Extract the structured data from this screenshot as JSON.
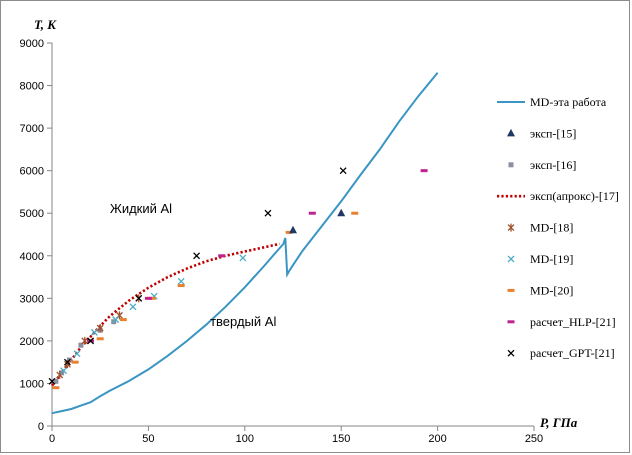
{
  "chart_data": {
    "type": "line",
    "title": "",
    "xlabel": "P, ГПа",
    "ylabel": "T, K",
    "xlim": [
      0,
      250
    ],
    "ylim": [
      0,
      9000
    ],
    "x_ticks": [
      0,
      50,
      100,
      150,
      200,
      250
    ],
    "y_ticks": [
      0,
      1000,
      2000,
      3000,
      4000,
      5000,
      6000,
      7000,
      8000,
      9000
    ],
    "grid": false,
    "legend_position": "right",
    "annotations": [
      {
        "text": "Жидкий Al",
        "x": 30,
        "y": 5000
      },
      {
        "text": "твердый Al",
        "x": 82,
        "y": 2350
      }
    ],
    "series": [
      {
        "name": "MD-эта работа",
        "kind": "line",
        "color": "#3a95c4",
        "x": [
          0,
          5,
          10,
          15,
          20,
          25,
          30,
          40,
          50,
          60,
          70,
          80,
          90,
          100,
          110,
          115,
          120,
          121,
          122,
          123,
          125,
          130,
          140,
          150,
          160,
          170,
          180,
          190,
          200
        ],
        "y": [
          300,
          350,
          400,
          480,
          560,
          700,
          830,
          1060,
          1330,
          1650,
          2000,
          2380,
          2800,
          3260,
          3760,
          4020,
          4280,
          4420,
          3560,
          3640,
          3780,
          4120,
          4700,
          5280,
          5900,
          6500,
          7150,
          7750,
          8300
        ]
      },
      {
        "name": "эксп-[15]",
        "kind": "marker",
        "marker": "triangle",
        "color": "#1f3864",
        "x": [
          125,
          150
        ],
        "y": [
          4600,
          5000
        ]
      },
      {
        "name": "эксп-[16]",
        "kind": "marker",
        "marker": "square",
        "color": "#8c8fa0",
        "x": [
          2,
          5,
          9,
          15,
          25,
          32
        ],
        "y": [
          1050,
          1250,
          1550,
          1900,
          2250,
          2450
        ]
      },
      {
        "name": "эксп(апрокс)-[17]",
        "kind": "dotted",
        "color": "#c00000",
        "x": [
          0,
          5,
          10,
          15,
          20,
          25,
          30,
          40,
          50,
          60,
          70,
          80,
          90,
          100,
          110,
          118
        ],
        "y": [
          950,
          1250,
          1550,
          1850,
          2100,
          2350,
          2580,
          2950,
          3250,
          3500,
          3700,
          3870,
          4000,
          4100,
          4200,
          4280
        ]
      },
      {
        "name": "MD-[18]",
        "kind": "marker",
        "marker": "asterisk",
        "color": "#a0522d",
        "x": [
          4,
          8,
          17,
          25,
          35,
          45
        ],
        "y": [
          1200,
          1450,
          2000,
          2300,
          2600,
          3000
        ]
      },
      {
        "name": "MD-[19]",
        "kind": "marker",
        "marker": "x",
        "color": "#4bacc6",
        "x": [
          6,
          13,
          22,
          33,
          42,
          53,
          67,
          99
        ],
        "y": [
          1300,
          1700,
          2200,
          2500,
          2800,
          3050,
          3400,
          3950
        ]
      },
      {
        "name": "MD-[20]",
        "kind": "marker",
        "marker": "dash",
        "color": "#e8812f",
        "x": [
          2,
          12,
          25,
          37,
          52,
          67,
          123,
          157
        ],
        "y": [
          900,
          1500,
          2050,
          2500,
          3000,
          3300,
          4550,
          5000
        ]
      },
      {
        "name": "расчет_HLP-[21]",
        "kind": "marker",
        "marker": "dash",
        "color": "#c0228f",
        "x": [
          20,
          50,
          88,
          135,
          193
        ],
        "y": [
          2000,
          3000,
          4000,
          5000,
          6000
        ]
      },
      {
        "name": "расчет_GPT-[21]",
        "kind": "marker",
        "marker": "x",
        "color": "#000000",
        "x": [
          0,
          8,
          20,
          45,
          75,
          112,
          151
        ],
        "y": [
          1050,
          1500,
          2000,
          3000,
          4000,
          5000,
          6000
        ]
      }
    ]
  }
}
